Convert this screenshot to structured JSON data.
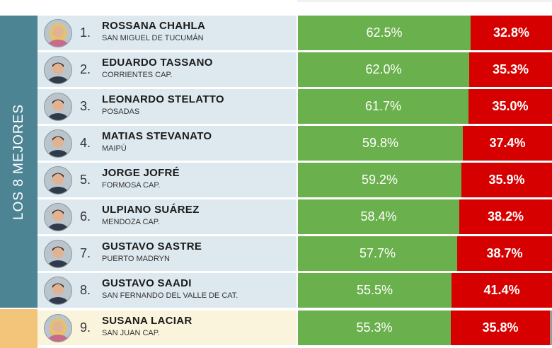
{
  "panel": {
    "side_label": "LOS 8 MEJORES"
  },
  "colors": {
    "approve": "#6ab04c",
    "disapprove": "#d60000",
    "remainder": "#9a9a9a",
    "side_panel": "#4d8493",
    "side_highlight": "#f2c57a",
    "row_bg": "#dde9ef",
    "row_highlight_bg": "#fbf4dd"
  },
  "chart_data": {
    "type": "bar",
    "stacked": true,
    "orientation": "horizontal",
    "categories": [
      "ROSSANA CHAHLA",
      "EDUARDO TASSANO",
      "LEONARDO STELATTO",
      "MATIAS STEVANATO",
      "JORGE JOFRÉ",
      "ULPIANO SUÁREZ",
      "GUSTAVO SASTRE",
      "GUSTAVO SAADI",
      "SUSANA LACIAR"
    ],
    "series": [
      {
        "values": [
          62.5,
          62.0,
          61.7,
          59.8,
          59.2,
          58.4,
          57.7,
          55.5,
          55.3
        ]
      },
      {
        "values": [
          32.8,
          35.3,
          35.0,
          37.4,
          35.9,
          38.2,
          38.7,
          41.4,
          35.8
        ]
      }
    ],
    "xlim": [
      0,
      100
    ],
    "rows": [
      {
        "rank": "1.",
        "name": "ROSSANA CHAHLA",
        "city": "SAN MIGUEL DE TUCUMÁN",
        "approve": 62.5,
        "approve_label": "62.5%",
        "disapprove": 32.8,
        "disapprove_label": "32.8%",
        "avatar": "female-portrait-icon",
        "highlight": false
      },
      {
        "rank": "2.",
        "name": "EDUARDO TASSANO",
        "city": "CORRIENTES CAP.",
        "approve": 62.0,
        "approve_label": "62.0%",
        "disapprove": 35.3,
        "disapprove_label": "35.3%",
        "avatar": "male-portrait-icon",
        "highlight": false
      },
      {
        "rank": "3.",
        "name": "LEONARDO STELATTO",
        "city": "POSADAS",
        "approve": 61.7,
        "approve_label": "61.7%",
        "disapprove": 35.0,
        "disapprove_label": "35.0%",
        "avatar": "male-portrait-icon",
        "highlight": false
      },
      {
        "rank": "4.",
        "name": "MATIAS STEVANATO",
        "city": "MAIPÚ",
        "approve": 59.8,
        "approve_label": "59.8%",
        "disapprove": 37.4,
        "disapprove_label": "37.4%",
        "avatar": "male-portrait-icon",
        "highlight": false
      },
      {
        "rank": "5.",
        "name": "JORGE JOFRÉ",
        "city": "FORMOSA CAP.",
        "approve": 59.2,
        "approve_label": "59.2%",
        "disapprove": 35.9,
        "disapprove_label": "35.9%",
        "avatar": "male-portrait-icon",
        "highlight": false
      },
      {
        "rank": "6.",
        "name": "ULPIANO SUÁREZ",
        "city": "MENDOZA CAP.",
        "approve": 58.4,
        "approve_label": "58.4%",
        "disapprove": 38.2,
        "disapprove_label": "38.2%",
        "avatar": "male-portrait-icon",
        "highlight": false
      },
      {
        "rank": "7.",
        "name": "GUSTAVO SASTRE",
        "city": "PUERTO MADRYN",
        "approve": 57.7,
        "approve_label": "57.7%",
        "disapprove": 38.7,
        "disapprove_label": "38.7%",
        "avatar": "male-portrait-icon",
        "highlight": false
      },
      {
        "rank": "8.",
        "name": "GUSTAVO SAADI",
        "city": "SAN FERNANDO DEL VALLE DE CAT.",
        "approve": 55.5,
        "approve_label": "55.5%",
        "disapprove": 41.4,
        "disapprove_label": "41.4%",
        "avatar": "male-portrait-icon",
        "highlight": false
      },
      {
        "rank": "9.",
        "name": "SUSANA LACIAR",
        "city": "SAN JUAN CAP.",
        "approve": 55.3,
        "approve_label": "55.3%",
        "disapprove": 35.8,
        "disapprove_label": "35.8%",
        "avatar": "female-portrait-icon",
        "highlight": true
      }
    ]
  }
}
